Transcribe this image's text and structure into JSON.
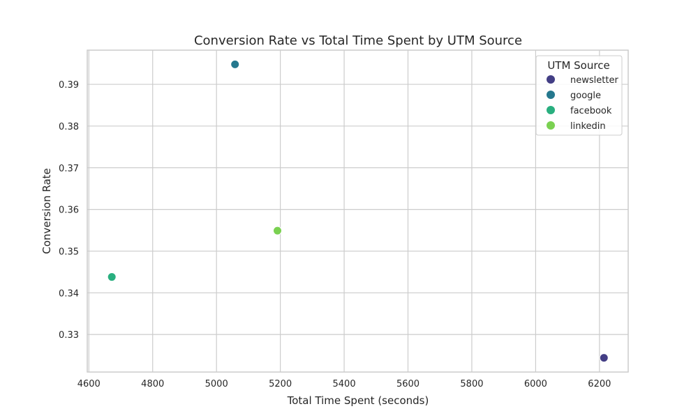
{
  "chart_data": {
    "type": "scatter",
    "title": "Conversion Rate vs Total Time Spent by UTM Source",
    "xlabel": "Total Time Spent (seconds)",
    "ylabel": "Conversion Rate",
    "xlim": [
      4595,
      6290
    ],
    "ylim": [
      0.321,
      0.3982
    ],
    "x_ticks": [
      4600,
      4800,
      5000,
      5200,
      5400,
      5600,
      5800,
      6000,
      6200
    ],
    "y_ticks": [
      0.33,
      0.34,
      0.35,
      0.36,
      0.37,
      0.38,
      0.39
    ],
    "grid": true,
    "legend": {
      "title": "UTM Source",
      "placement": "top-right"
    },
    "series": [
      {
        "name": "newsletter",
        "color": "#433e85",
        "points": [
          {
            "x": 6214,
            "y": 0.3244
          }
        ]
      },
      {
        "name": "google",
        "color": "#25788e",
        "points": [
          {
            "x": 5058,
            "y": 0.3948
          }
        ]
      },
      {
        "name": "facebook",
        "color": "#29af7f",
        "points": [
          {
            "x": 4672,
            "y": 0.3438
          }
        ]
      },
      {
        "name": "linkedin",
        "color": "#7ad151",
        "points": [
          {
            "x": 5191,
            "y": 0.3549
          }
        ]
      }
    ]
  }
}
